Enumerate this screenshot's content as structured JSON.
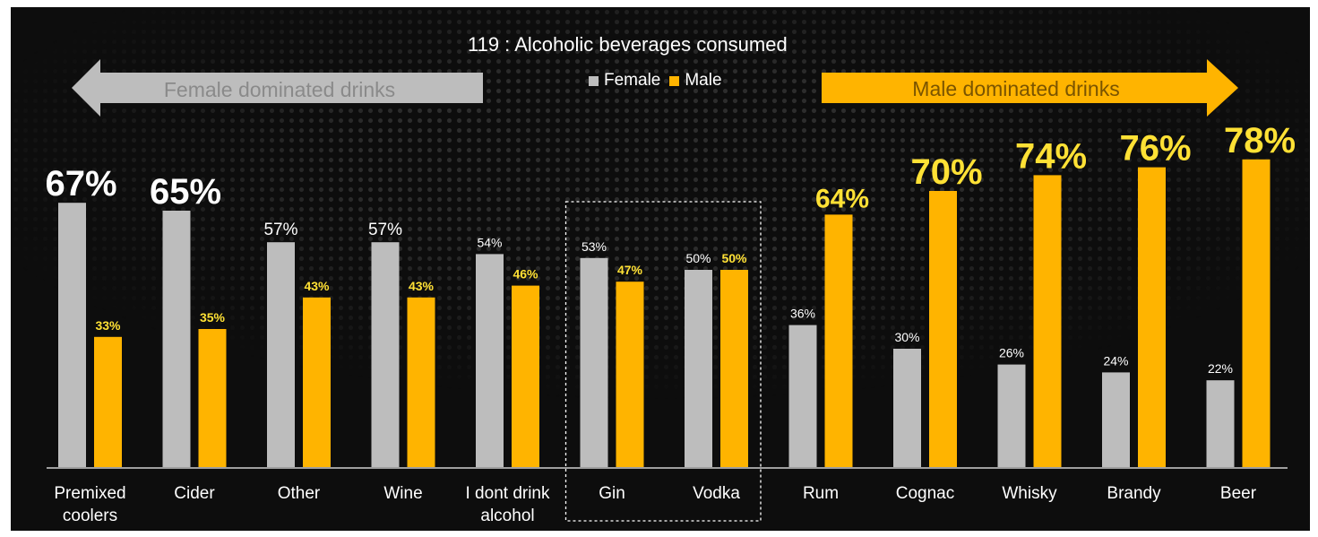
{
  "chart_data": {
    "type": "bar",
    "title": "119 : Alcoholic beverages consumed",
    "categories": [
      "Premixed coolers",
      "Cider",
      "Other",
      "Wine",
      "I dont drink alcohol",
      "Gin",
      "Vodka",
      "Rum",
      "Cognac",
      "Whisky",
      "Brandy",
      "Beer"
    ],
    "category_lines": [
      [
        "Premixed",
        "coolers"
      ],
      [
        "Cider"
      ],
      [
        "Other"
      ],
      [
        "Wine"
      ],
      [
        "I dont drink",
        "alcohol"
      ],
      [
        "Gin"
      ],
      [
        "Vodka"
      ],
      [
        "Rum"
      ],
      [
        "Cognac"
      ],
      [
        "Whisky"
      ],
      [
        "Brandy"
      ],
      [
        "Beer"
      ]
    ],
    "series": [
      {
        "name": "Female",
        "color": "#bdbdbd",
        "values": [
          67,
          65,
          57,
          57,
          54,
          53,
          50,
          36,
          30,
          26,
          24,
          22
        ]
      },
      {
        "name": "Male",
        "color": "#ffb400",
        "values": [
          33,
          35,
          43,
          43,
          46,
          47,
          50,
          64,
          70,
          74,
          76,
          78
        ]
      }
    ],
    "female_label_color": "#ffffff",
    "male_label_color": "#ffe135",
    "annotations": {
      "left_arrow": "Female dominated drinks",
      "right_arrow": "Male dominated drinks",
      "highlight_box": [
        "Gin",
        "Vodka"
      ]
    },
    "legend_position": "top-center",
    "grid": false
  }
}
